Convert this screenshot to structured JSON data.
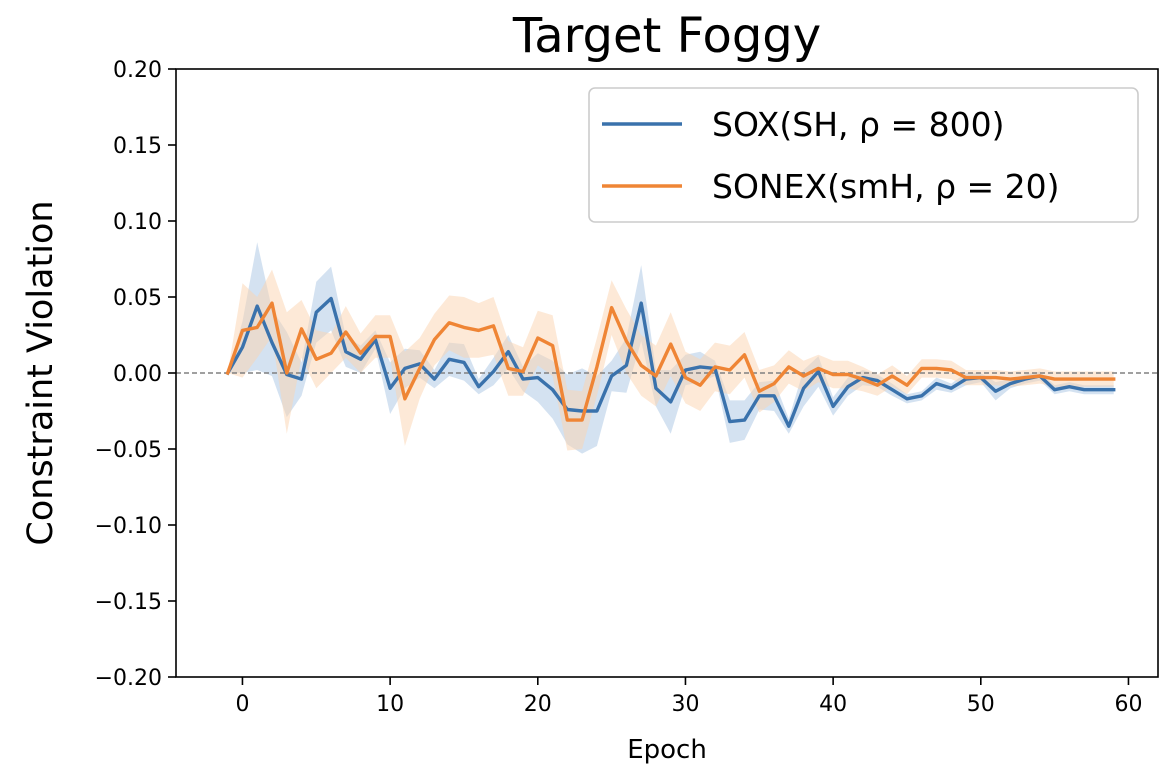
{
  "chart_data": {
    "type": "line",
    "title": "Target Foggy",
    "xlabel": "Epoch",
    "ylabel": "Constraint Violation",
    "xlim": [
      -4.5,
      62
    ],
    "ylim": [
      -0.2,
      0.2
    ],
    "xticks": [
      0,
      10,
      20,
      30,
      40,
      50,
      60
    ],
    "xtick_labels": [
      "0",
      "10",
      "20",
      "30",
      "40",
      "50",
      "60"
    ],
    "yticks": [
      -0.2,
      -0.15,
      -0.1,
      -0.05,
      0.0,
      0.05,
      0.1,
      0.15,
      0.2
    ],
    "ytick_labels": [
      "−0.20",
      "−0.15",
      "−0.10",
      "−0.05",
      "0.00",
      "0.05",
      "0.10",
      "0.15",
      "0.20"
    ],
    "grid": false,
    "reference_line": {
      "y": 0.0,
      "style": "dashed",
      "color": "#808080"
    },
    "legend": {
      "position": "top-right"
    },
    "x": [
      -1,
      0,
      1,
      2,
      3,
      4,
      5,
      6,
      7,
      8,
      9,
      10,
      11,
      12,
      13,
      14,
      15,
      16,
      17,
      18,
      19,
      20,
      21,
      22,
      23,
      24,
      25,
      26,
      27,
      28,
      29,
      30,
      31,
      32,
      33,
      34,
      35,
      36,
      37,
      38,
      39,
      40,
      41,
      42,
      43,
      44,
      45,
      46,
      47,
      48,
      49,
      50,
      51,
      52,
      53,
      54,
      55,
      56,
      57,
      58,
      59
    ],
    "series": [
      {
        "name": "SOX(SH, ρ = 800)",
        "color": "#3a72ac",
        "band_color": "#a9c6e3",
        "values": [
          0.0,
          0.017,
          0.044,
          0.02,
          -0.001,
          -0.004,
          0.04,
          0.049,
          0.014,
          0.009,
          0.022,
          -0.01,
          0.003,
          0.006,
          -0.004,
          0.009,
          0.007,
          -0.009,
          0.001,
          0.014,
          -0.004,
          -0.003,
          -0.011,
          -0.024,
          -0.025,
          -0.025,
          -0.002,
          0.005,
          0.046,
          -0.01,
          -0.019,
          0.002,
          0.004,
          0.003,
          -0.032,
          -0.031,
          -0.015,
          -0.015,
          -0.035,
          -0.01,
          0.001,
          -0.022,
          -0.009,
          -0.003,
          -0.005,
          -0.011,
          -0.017,
          -0.015,
          -0.007,
          -0.01,
          -0.004,
          -0.003,
          -0.012,
          -0.007,
          -0.004,
          -0.002,
          -0.011,
          -0.009,
          -0.011,
          -0.011,
          -0.011
        ],
        "band_lower": [
          0.0,
          0.0,
          0.002,
          -0.002,
          -0.029,
          -0.015,
          0.02,
          0.028,
          0.004,
          0.0,
          0.016,
          -0.027,
          -0.01,
          -0.003,
          -0.01,
          -0.002,
          -0.005,
          -0.014,
          -0.008,
          0.003,
          -0.012,
          -0.019,
          -0.03,
          -0.047,
          -0.053,
          -0.048,
          -0.012,
          -0.013,
          0.021,
          -0.022,
          -0.04,
          -0.008,
          -0.006,
          -0.002,
          -0.046,
          -0.044,
          -0.024,
          -0.025,
          -0.04,
          -0.022,
          -0.009,
          -0.028,
          -0.015,
          -0.008,
          -0.009,
          -0.015,
          -0.02,
          -0.018,
          -0.011,
          -0.013,
          -0.008,
          -0.006,
          -0.018,
          -0.01,
          -0.007,
          -0.005,
          -0.014,
          -0.012,
          -0.014,
          -0.014,
          -0.014
        ],
        "band_upper": [
          0.0,
          0.034,
          0.086,
          0.042,
          0.027,
          0.007,
          0.06,
          0.07,
          0.024,
          0.018,
          0.028,
          0.007,
          0.016,
          0.015,
          0.002,
          0.02,
          0.019,
          -0.004,
          0.01,
          0.025,
          0.004,
          0.013,
          0.008,
          -0.001,
          0.003,
          -0.002,
          0.008,
          0.023,
          0.071,
          0.002,
          0.002,
          0.012,
          0.014,
          0.008,
          -0.018,
          -0.018,
          -0.006,
          -0.005,
          -0.03,
          0.002,
          0.011,
          -0.016,
          -0.003,
          0.002,
          -0.001,
          -0.007,
          -0.014,
          -0.012,
          -0.003,
          -0.007,
          0.0,
          0.0,
          -0.006,
          -0.004,
          -0.001,
          0.001,
          -0.008,
          -0.006,
          -0.008,
          -0.008,
          -0.008
        ]
      },
      {
        "name": "SONEX(smH, ρ = 20)",
        "color": "#ef8535",
        "band_color": "#fbd3b0",
        "values": [
          0.0,
          0.028,
          0.03,
          0.046,
          0.0,
          0.029,
          0.009,
          0.013,
          0.027,
          0.013,
          0.024,
          0.024,
          -0.017,
          0.003,
          0.022,
          0.033,
          0.03,
          0.028,
          0.031,
          0.003,
          0.001,
          0.023,
          0.018,
          -0.031,
          -0.031,
          0.004,
          0.043,
          0.021,
          0.005,
          -0.002,
          0.019,
          -0.003,
          -0.008,
          0.004,
          0.002,
          0.012,
          -0.012,
          -0.007,
          0.004,
          -0.002,
          0.003,
          -0.001,
          -0.001,
          -0.004,
          -0.008,
          -0.002,
          -0.008,
          0.003,
          0.003,
          0.002,
          -0.003,
          -0.003,
          -0.003,
          -0.004,
          -0.003,
          -0.002,
          -0.004,
          -0.004,
          -0.004,
          -0.004,
          -0.004
        ],
        "band_lower": [
          0.0,
          -0.003,
          0.01,
          0.024,
          -0.04,
          0.01,
          -0.01,
          0.0,
          0.01,
          0.0,
          0.01,
          0.01,
          -0.048,
          -0.017,
          0.005,
          0.015,
          0.01,
          0.01,
          0.012,
          -0.015,
          -0.015,
          0.005,
          -0.002,
          -0.051,
          -0.05,
          -0.015,
          0.025,
          0.0,
          -0.015,
          -0.022,
          -0.002,
          -0.02,
          -0.025,
          -0.012,
          -0.014,
          -0.003,
          -0.026,
          -0.019,
          -0.007,
          -0.012,
          -0.006,
          -0.01,
          -0.01,
          -0.012,
          -0.015,
          -0.009,
          -0.014,
          -0.003,
          -0.003,
          -0.004,
          -0.008,
          -0.008,
          -0.008,
          -0.009,
          -0.008,
          -0.007,
          -0.009,
          -0.009,
          -0.009,
          -0.009,
          -0.009
        ],
        "band_upper": [
          0.0,
          0.059,
          0.05,
          0.068,
          0.04,
          0.048,
          0.028,
          0.026,
          0.044,
          0.026,
          0.038,
          0.038,
          0.014,
          0.023,
          0.039,
          0.051,
          0.05,
          0.046,
          0.05,
          0.021,
          0.017,
          0.041,
          0.038,
          -0.011,
          -0.012,
          0.023,
          0.061,
          0.042,
          0.025,
          0.018,
          0.04,
          0.014,
          0.009,
          0.02,
          0.018,
          0.027,
          0.002,
          0.005,
          0.015,
          0.008,
          0.012,
          0.008,
          0.008,
          0.004,
          -0.001,
          0.005,
          -0.002,
          0.009,
          0.009,
          0.008,
          0.002,
          0.002,
          0.002,
          0.001,
          0.002,
          0.003,
          0.001,
          0.001,
          0.001,
          0.001,
          0.001
        ]
      }
    ]
  }
}
